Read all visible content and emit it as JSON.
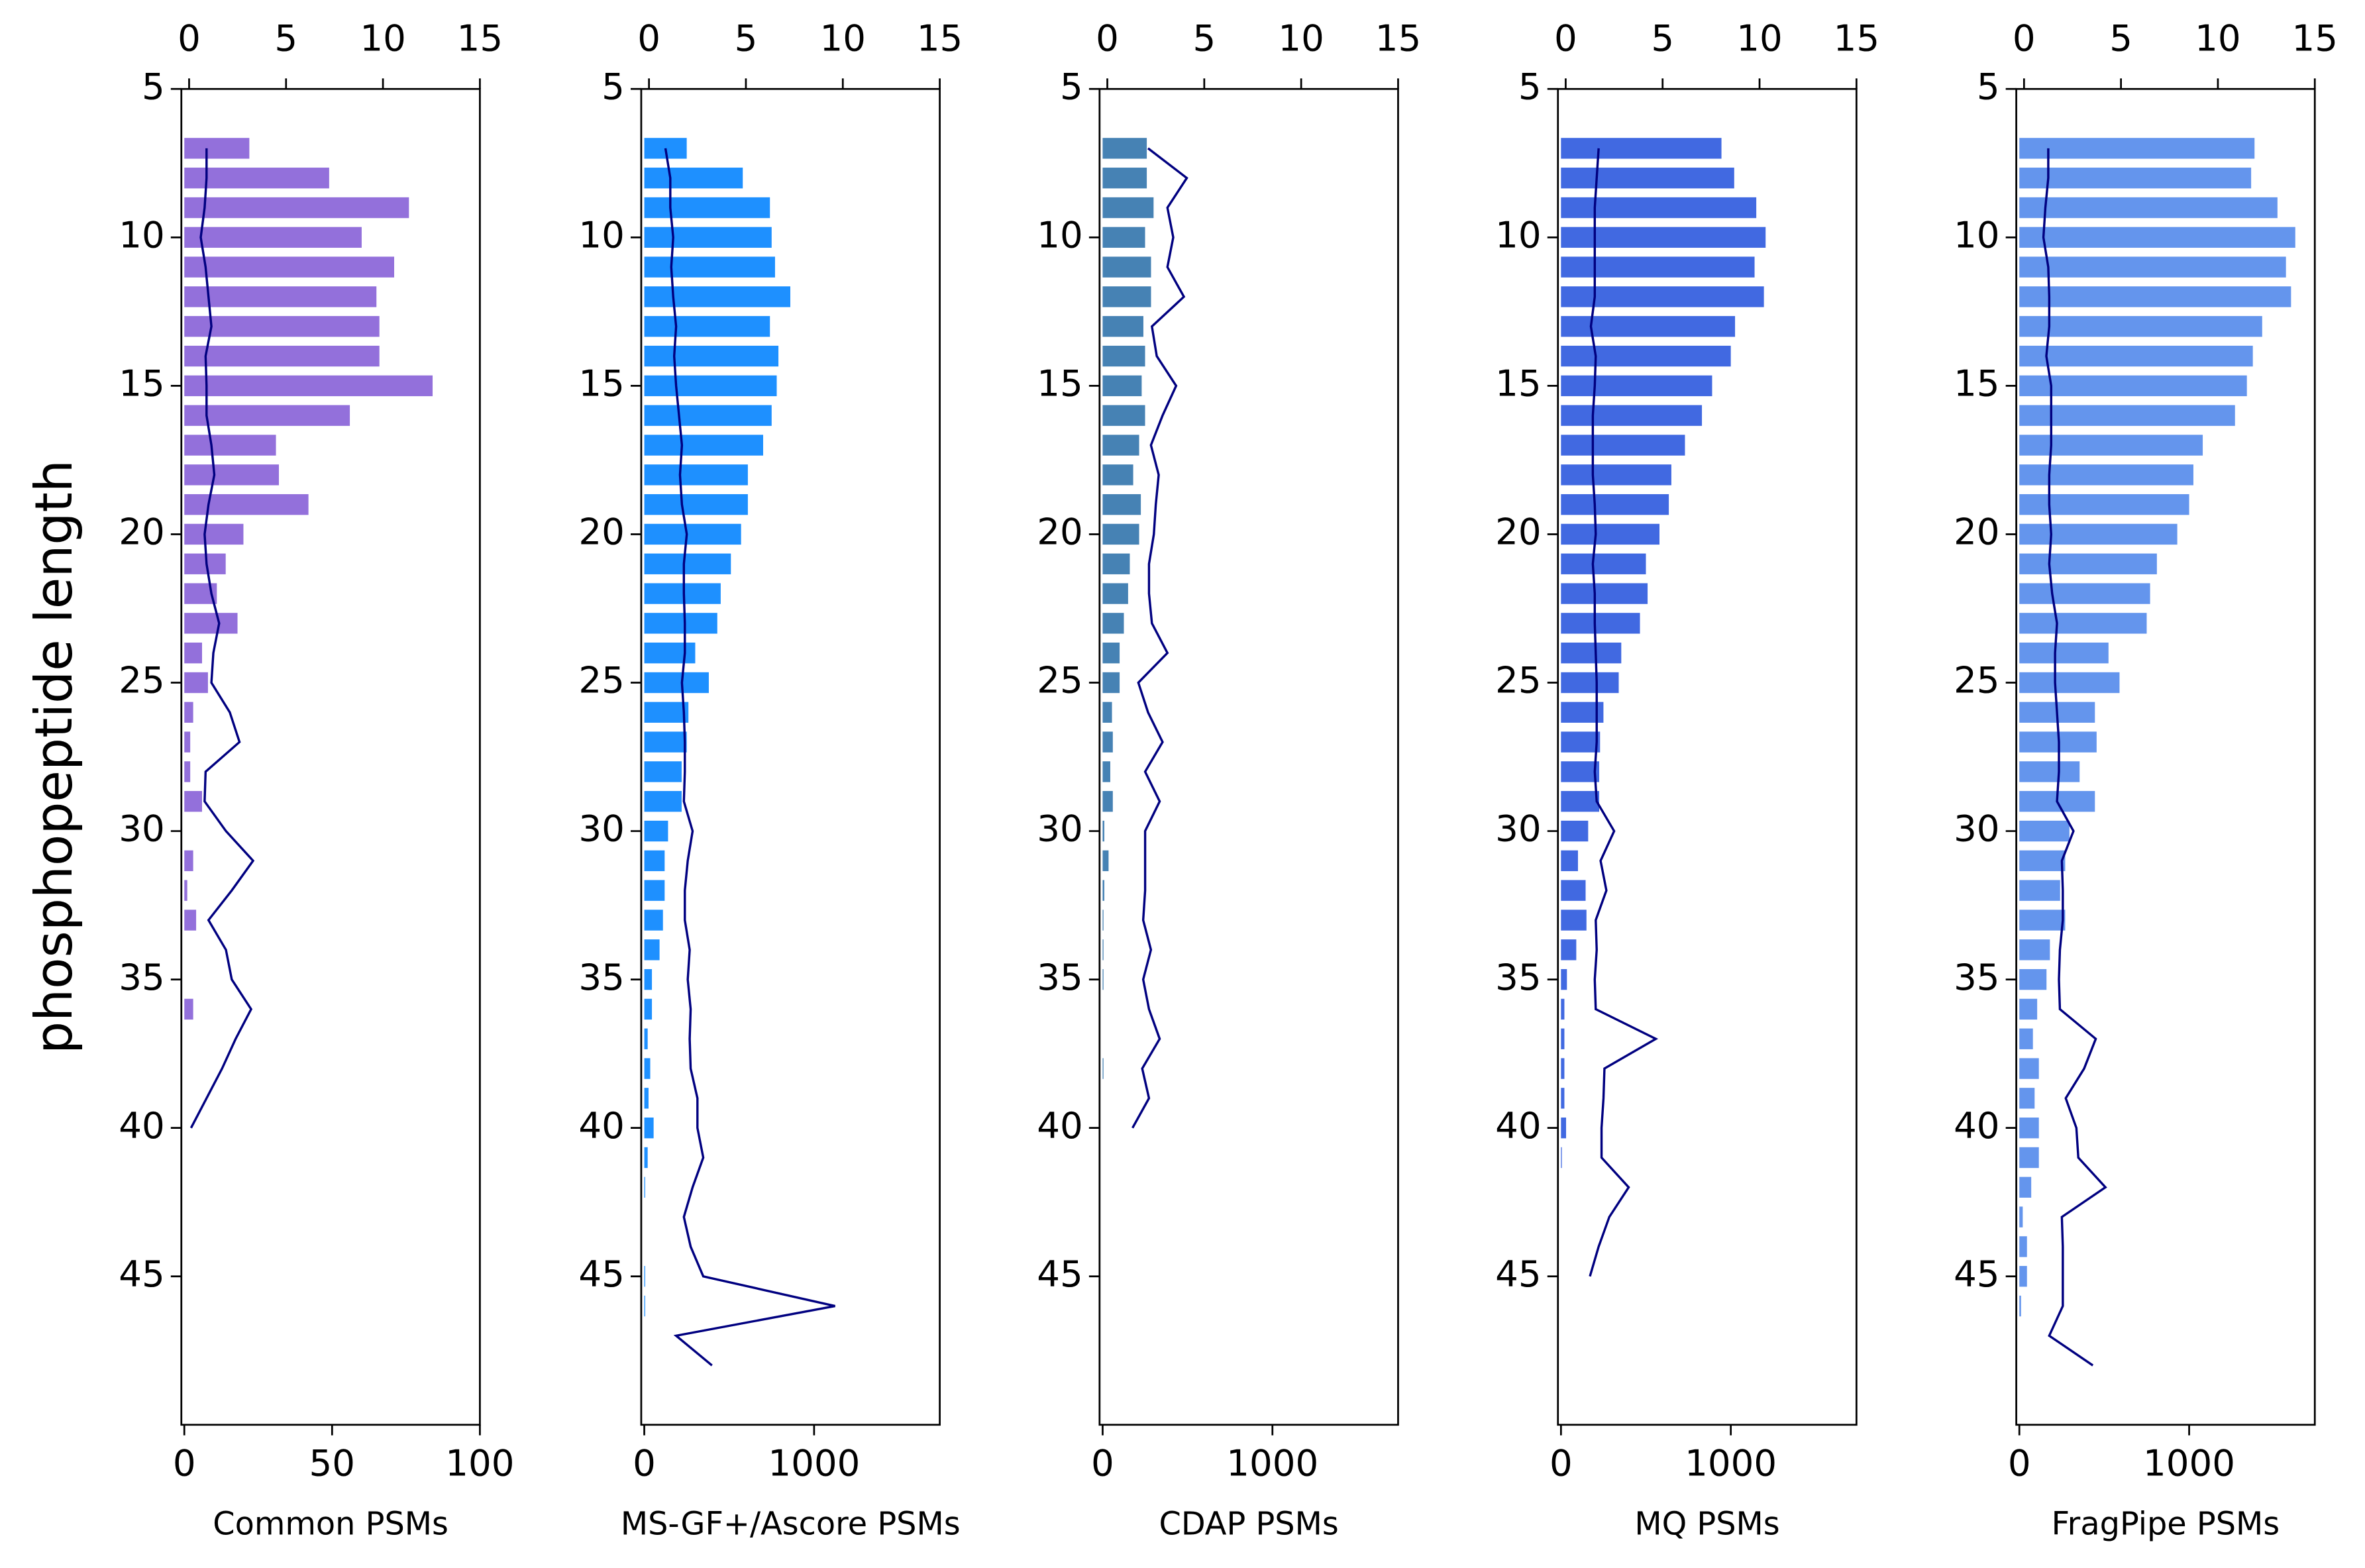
{
  "chart_data": [
    {
      "type": "bar",
      "orientation": "horizontal",
      "ylabel": "phosphopeptide length",
      "xlabel": "Common PSMs",
      "y": [
        7,
        8,
        9,
        10,
        11,
        12,
        13,
        14,
        15,
        16,
        17,
        18,
        19,
        20,
        21,
        22,
        23,
        24,
        25,
        26,
        27,
        28,
        29,
        30,
        31,
        32,
        33,
        34,
        35,
        36,
        37,
        38,
        39,
        40,
        41,
        42,
        43,
        44,
        45,
        46,
        47,
        48
      ],
      "series": [
        {
          "type": "bar",
          "color": "#9370db",
          "values": [
            22,
            49,
            76,
            60,
            71,
            65,
            66,
            66,
            84,
            56,
            31,
            32,
            42,
            20,
            14,
            11,
            18,
            6,
            8,
            3,
            2,
            2,
            6,
            null,
            3,
            1,
            4,
            null,
            null,
            3,
            null,
            null,
            null,
            null,
            null,
            null,
            null,
            null,
            null,
            null,
            null,
            null
          ]
        },
        {
          "type": "line",
          "axis": "x2",
          "color": "#000080",
          "values": [
            0.9,
            0.9,
            0.8,
            0.6,
            0.85,
            1.0,
            1.15,
            0.85,
            0.9,
            0.9,
            1.15,
            1.3,
            1.0,
            0.8,
            0.9,
            1.15,
            1.55,
            1.25,
            1.15,
            2.1,
            2.6,
            0.85,
            0.8,
            1.9,
            3.3,
            2.2,
            1.0,
            1.9,
            2.2,
            3.2,
            2.4,
            1.7,
            0.9,
            0.1,
            null,
            null,
            null,
            null,
            null,
            null,
            null,
            null
          ]
        }
      ],
      "xlim": [
        -1,
        100
      ],
      "xticks": [
        0,
        50,
        100
      ],
      "x2lim": [
        -0.4,
        15
      ],
      "x2ticks": [
        0,
        5,
        10,
        15
      ],
      "ylim": [
        50,
        5
      ],
      "yticks": [
        5,
        10,
        15,
        20,
        25,
        30,
        35,
        40,
        45
      ]
    },
    {
      "type": "bar",
      "orientation": "horizontal",
      "xlabel": "MS-GF+/Ascore PSMs",
      "y": [
        7,
        8,
        9,
        10,
        11,
        12,
        13,
        14,
        15,
        16,
        17,
        18,
        19,
        20,
        21,
        22,
        23,
        24,
        25,
        26,
        27,
        28,
        29,
        30,
        31,
        32,
        33,
        34,
        35,
        36,
        37,
        38,
        39,
        40,
        41,
        42,
        43,
        44,
        45,
        46,
        47,
        48
      ],
      "series": [
        {
          "type": "bar",
          "color": "#1e90ff",
          "values": [
            250,
            580,
            740,
            750,
            770,
            860,
            740,
            790,
            780,
            750,
            700,
            610,
            610,
            570,
            510,
            450,
            430,
            300,
            380,
            260,
            250,
            220,
            220,
            140,
            120,
            120,
            110,
            90,
            45,
            45,
            20,
            35,
            25,
            55,
            20,
            5,
            null,
            null,
            5,
            5,
            null,
            null
          ]
        },
        {
          "type": "line",
          "axis": "x2",
          "color": "#000080",
          "values": [
            0.85,
            1.1,
            1.1,
            1.25,
            1.15,
            1.25,
            1.4,
            1.3,
            1.4,
            1.55,
            1.7,
            1.6,
            1.7,
            1.95,
            1.8,
            1.8,
            1.85,
            1.85,
            1.7,
            1.8,
            1.85,
            1.85,
            1.8,
            2.25,
            2.0,
            1.85,
            1.85,
            2.1,
            2.0,
            2.15,
            2.1,
            2.15,
            2.5,
            2.5,
            2.8,
            2.25,
            1.8,
            2.15,
            2.8,
            9.6,
            1.4,
            3.25
          ]
        }
      ],
      "xlim": [
        -18,
        1740
      ],
      "xticks": [
        0,
        1000
      ],
      "x2lim": [
        -0.4,
        15
      ],
      "x2ticks": [
        0,
        5,
        10,
        15
      ],
      "ylim": [
        50,
        5
      ],
      "yticks": [
        5,
        10,
        15,
        20,
        25,
        30,
        35,
        40,
        45
      ]
    },
    {
      "type": "bar",
      "orientation": "horizontal",
      "xlabel": "CDAP PSMs",
      "y": [
        7,
        8,
        9,
        10,
        11,
        12,
        13,
        14,
        15,
        16,
        17,
        18,
        19,
        20,
        21,
        22,
        23,
        24,
        25,
        26,
        27,
        28,
        29,
        30,
        31,
        32,
        33,
        34,
        35,
        36,
        37,
        38,
        39,
        40,
        41,
        42,
        43,
        44,
        45,
        46,
        47,
        48
      ],
      "series": [
        {
          "type": "bar",
          "color": "#4682b4",
          "values": [
            260,
            260,
            300,
            250,
            285,
            285,
            240,
            250,
            230,
            250,
            215,
            180,
            225,
            215,
            160,
            150,
            125,
            100,
            100,
            55,
            60,
            45,
            60,
            10,
            35,
            10,
            5,
            5,
            5,
            null,
            null,
            5,
            null,
            null,
            null,
            null,
            null,
            null,
            null,
            null,
            null,
            null
          ]
        },
        {
          "type": "line",
          "axis": "x2",
          "color": "#000080",
          "values": [
            2.1,
            4.1,
            3.1,
            3.4,
            3.1,
            3.95,
            2.3,
            2.55,
            3.55,
            2.85,
            2.25,
            2.65,
            2.5,
            2.4,
            2.15,
            2.15,
            2.3,
            3.1,
            1.6,
            2.1,
            2.85,
            1.95,
            2.7,
            1.95,
            1.95,
            1.95,
            1.85,
            2.25,
            1.85,
            2.15,
            2.7,
            1.8,
            2.15,
            1.3,
            null,
            null,
            null,
            null,
            null,
            null,
            null,
            null
          ]
        }
      ],
      "xlim": [
        -18,
        1740
      ],
      "xticks": [
        0,
        1000
      ],
      "x2lim": [
        -0.4,
        15
      ],
      "x2ticks": [
        0,
        5,
        10,
        15
      ],
      "ylim": [
        50,
        5
      ],
      "yticks": [
        5,
        10,
        15,
        20,
        25,
        30,
        35,
        40,
        45
      ]
    },
    {
      "type": "bar",
      "orientation": "horizontal",
      "xlabel": "MQ PSMs",
      "y": [
        7,
        8,
        9,
        10,
        11,
        12,
        13,
        14,
        15,
        16,
        17,
        18,
        19,
        20,
        21,
        22,
        23,
        24,
        25,
        26,
        27,
        28,
        29,
        30,
        31,
        32,
        33,
        34,
        35,
        36,
        37,
        38,
        39,
        40,
        41,
        42,
        43,
        44,
        45,
        46,
        47,
        48
      ],
      "series": [
        {
          "type": "bar",
          "color": "#4169e1",
          "values": [
            945,
            1020,
            1150,
            1205,
            1140,
            1195,
            1025,
            1000,
            890,
            830,
            730,
            650,
            635,
            580,
            500,
            510,
            465,
            355,
            340,
            250,
            230,
            225,
            225,
            160,
            100,
            145,
            150,
            90,
            35,
            20,
            20,
            20,
            20,
            30,
            5,
            null,
            null,
            null,
            null,
            null,
            null,
            null
          ]
        },
        {
          "type": "line",
          "axis": "x2",
          "color": "#000080",
          "values": [
            1.7,
            1.6,
            1.5,
            1.5,
            1.5,
            1.5,
            1.3,
            1.55,
            1.5,
            1.4,
            1.4,
            1.4,
            1.5,
            1.55,
            1.4,
            1.5,
            1.5,
            1.55,
            1.6,
            1.6,
            1.6,
            1.5,
            1.6,
            2.5,
            1.8,
            2.1,
            1.55,
            1.6,
            1.5,
            1.55,
            4.65,
            2.0,
            1.95,
            1.85,
            1.85,
            3.25,
            2.25,
            1.7,
            1.25,
            null,
            null,
            null
          ]
        }
      ],
      "xlim": [
        -18,
        1740
      ],
      "xticks": [
        0,
        1000
      ],
      "x2lim": [
        -0.4,
        15
      ],
      "x2ticks": [
        0,
        5,
        10,
        15
      ],
      "ylim": [
        50,
        5
      ],
      "yticks": [
        5,
        10,
        15,
        20,
        25,
        30,
        35,
        40,
        45
      ]
    },
    {
      "type": "bar",
      "orientation": "horizontal",
      "xlabel": "FragPipe PSMs",
      "y": [
        7,
        8,
        9,
        10,
        11,
        12,
        13,
        14,
        15,
        16,
        17,
        18,
        19,
        20,
        21,
        22,
        23,
        24,
        25,
        26,
        27,
        28,
        29,
        30,
        31,
        32,
        33,
        34,
        35,
        36,
        37,
        38,
        39,
        40,
        41,
        42,
        43,
        44,
        45,
        46,
        47,
        48
      ],
      "series": [
        {
          "type": "bar",
          "color": "#6495ed",
          "values": [
            1385,
            1365,
            1520,
            1625,
            1570,
            1600,
            1430,
            1375,
            1340,
            1270,
            1080,
            1025,
            1000,
            930,
            810,
            770,
            750,
            525,
            590,
            445,
            455,
            355,
            445,
            295,
            270,
            240,
            270,
            180,
            160,
            105,
            80,
            115,
            90,
            115,
            115,
            70,
            20,
            45,
            45,
            10,
            null,
            null
          ]
        },
        {
          "type": "line",
          "axis": "x2",
          "color": "#000080",
          "values": [
            1.25,
            1.25,
            1.1,
            1.0,
            1.25,
            1.3,
            1.3,
            1.15,
            1.4,
            1.4,
            1.4,
            1.3,
            1.3,
            1.4,
            1.3,
            1.45,
            1.7,
            1.6,
            1.6,
            1.7,
            1.8,
            1.8,
            1.7,
            2.55,
            1.95,
            2.0,
            2.0,
            1.85,
            1.8,
            1.85,
            3.7,
            3.1,
            2.15,
            2.7,
            2.8,
            4.2,
            1.95,
            2.0,
            2.0,
            2.0,
            1.3,
            3.55
          ]
        }
      ],
      "xlim": [
        -18,
        1740
      ],
      "xticks": [
        0,
        1000
      ],
      "x2lim": [
        -0.4,
        15
      ],
      "x2ticks": [
        0,
        5,
        10,
        15
      ],
      "ylim": [
        50,
        5
      ],
      "yticks": [
        5,
        10,
        15,
        20,
        25,
        30,
        35,
        40,
        45
      ]
    }
  ]
}
